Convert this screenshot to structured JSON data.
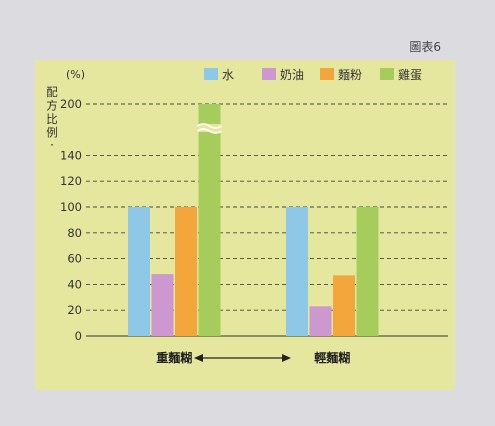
{
  "figure_label": "圖表6",
  "chart_data": {
    "type": "bar",
    "unit_label": "(%)",
    "ylabel": "配方比例",
    "y_ticks": [
      0,
      20,
      40,
      60,
      80,
      100,
      120,
      140,
      200
    ],
    "y_axis_break": true,
    "categories": [
      "重麵糊",
      "輕麵糊"
    ],
    "series": [
      {
        "name": "水",
        "color": "#8ec8e6",
        "values": [
          100,
          100
        ]
      },
      {
        "name": "奶油",
        "color": "#cc98cf",
        "values": [
          48,
          23
        ]
      },
      {
        "name": "麵粉",
        "color": "#f2a63c",
        "values": [
          100,
          47
        ]
      },
      {
        "name": "雞蛋",
        "color": "#a6cc5c",
        "values": [
          200,
          100
        ]
      }
    ],
    "legend_position": "top",
    "grid": "dashed horizontal",
    "arrow_between_categories": true
  },
  "colors": {
    "page_background": "#dcdce0",
    "panel_background": "#e5e79f",
    "text": "#333333"
  }
}
